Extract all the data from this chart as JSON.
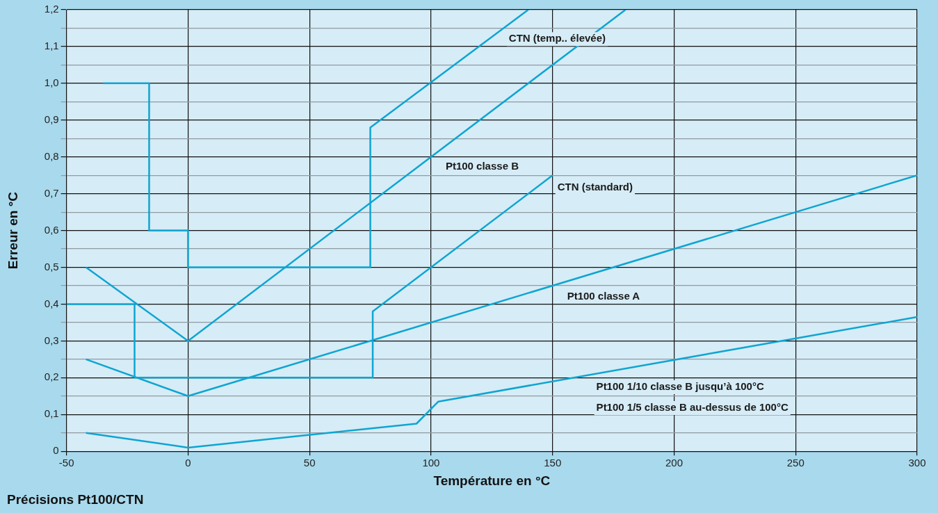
{
  "chart_data": {
    "type": "line",
    "title": "Précisions Pt100/CTN",
    "xlabel": "Température en °C",
    "ylabel": "Erreur en °C",
    "xlim": [
      -50,
      300
    ],
    "xticks": [
      -50,
      0,
      50,
      100,
      150,
      200,
      250,
      300
    ],
    "ylim": [
      0,
      1.2
    ],
    "yticks": [
      0,
      {
        "value": 0.05,
        "label": null
      },
      {
        "value": 0.1,
        "label": "0,1"
      },
      {
        "value": 0.15,
        "label": null
      },
      {
        "value": 0.2,
        "label": "0,2"
      },
      {
        "value": 0.25,
        "label": null
      },
      {
        "value": 0.3,
        "label": "0,3"
      },
      {
        "value": 0.35,
        "label": null
      },
      {
        "value": 0.4,
        "label": "0,4"
      },
      {
        "value": 0.45,
        "label": null
      },
      {
        "value": 0.5,
        "label": "0,5"
      },
      {
        "value": 0.55,
        "label": null
      },
      {
        "value": 0.6,
        "label": "0,6"
      },
      {
        "value": 0.65,
        "label": null
      },
      {
        "value": 0.7,
        "label": "0,7"
      },
      {
        "value": 0.75,
        "label": null
      },
      {
        "value": 0.8,
        "label": "0,8"
      },
      {
        "value": 0.85,
        "label": null
      },
      {
        "value": 0.9,
        "label": "0,9"
      },
      {
        "value": 0.95,
        "label": null
      },
      {
        "value": 1.0,
        "label": "1,0"
      },
      {
        "value": 1.05,
        "label": null
      },
      {
        "value": 1.1,
        "label": "1,1"
      },
      {
        "value": 1.15,
        "label": null
      },
      {
        "value": 1.2,
        "label": "1,2"
      }
    ],
    "grid": true,
    "marker": "none",
    "line_style": "solid",
    "series": [
      {
        "name": "CTN (temp.. élevée)",
        "color": "#0ea5d2",
        "x": [
          -35,
          -16,
          -16,
          0,
          0,
          75,
          75,
          140
        ],
        "values": [
          1.0,
          1.0,
          0.6,
          0.6,
          0.5,
          0.5,
          0.88,
          1.2
        ]
      },
      {
        "name": "Pt100 classe B",
        "color": "#0ea5d2",
        "x": [
          -42,
          0,
          180
        ],
        "values": [
          0.5,
          0.3,
          1.2
        ]
      },
      {
        "name": "CTN (standard)",
        "color": "#0ea5d2",
        "x": [
          -50,
          -22,
          -22,
          76,
          76,
          150
        ],
        "values": [
          0.4,
          0.4,
          0.2,
          0.2,
          0.38,
          0.75
        ]
      },
      {
        "name": "Pt100 classe A",
        "color": "#0ea5d2",
        "x": [
          -42,
          0,
          300
        ],
        "values": [
          0.25,
          0.15,
          0.75
        ]
      },
      {
        "name": "Pt100 1/10 classe B jusqu’à 100°C\nPt100 1/5 classe B au-dessus de 100°C",
        "color": "#0ea5d2",
        "x": [
          -42,
          0,
          94,
          103,
          300
        ],
        "values": [
          0.05,
          0.01,
          0.075,
          0.135,
          0.365
        ]
      }
    ]
  }
}
